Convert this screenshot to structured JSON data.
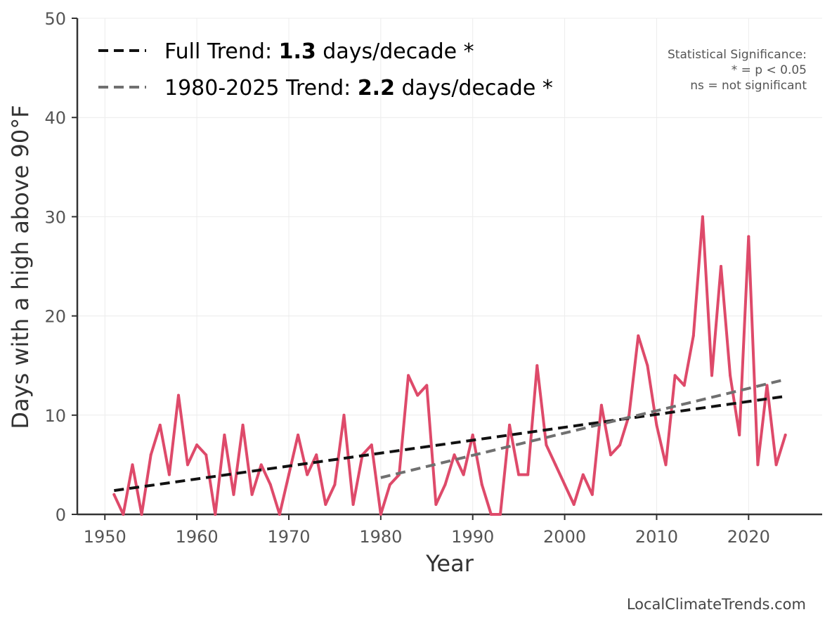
{
  "chart_data": {
    "type": "line",
    "xlabel": "Year",
    "ylabel": "Days with a high above 90°F",
    "xlim": [
      1947,
      2028
    ],
    "ylim": [
      0,
      50
    ],
    "x_ticks": [
      1950,
      1960,
      1970,
      1980,
      1990,
      2000,
      2010,
      2020
    ],
    "y_ticks": [
      0,
      10,
      20,
      30,
      40,
      50
    ],
    "grid": true,
    "series": [
      {
        "name": "Days with a high above 90°F",
        "color": "#de4a6a",
        "x": [
          1951,
          1952,
          1953,
          1954,
          1955,
          1956,
          1957,
          1958,
          1959,
          1960,
          1961,
          1962,
          1963,
          1964,
          1965,
          1966,
          1967,
          1968,
          1969,
          1970,
          1971,
          1972,
          1973,
          1974,
          1975,
          1976,
          1977,
          1978,
          1979,
          1980,
          1981,
          1982,
          1983,
          1984,
          1985,
          1986,
          1987,
          1988,
          1989,
          1990,
          1991,
          1992,
          1993,
          1994,
          1995,
          1996,
          1997,
          1998,
          1999,
          2000,
          2001,
          2002,
          2003,
          2004,
          2005,
          2006,
          2007,
          2008,
          2009,
          2010,
          2011,
          2012,
          2013,
          2014,
          2015,
          2016,
          2017,
          2018,
          2019,
          2020,
          2021,
          2022,
          2023,
          2024
        ],
        "values": [
          2,
          0,
          5,
          0,
          6,
          9,
          4,
          12,
          5,
          7,
          6,
          0,
          8,
          2,
          9,
          2,
          5,
          3,
          0,
          4,
          8,
          4,
          6,
          1,
          3,
          10,
          1,
          6,
          7,
          0,
          3,
          4,
          14,
          12,
          13,
          1,
          3,
          6,
          4,
          8,
          3,
          0,
          0,
          9,
          4,
          4,
          15,
          7,
          5,
          3,
          1,
          4,
          2,
          11,
          6,
          7,
          10,
          18,
          15,
          9,
          5,
          14,
          13,
          18,
          30,
          14,
          25,
          14,
          8,
          28,
          5,
          13,
          5,
          8
        ]
      }
    ],
    "trends": [
      {
        "name": "Full Trend",
        "label_prefix": "Full Trend: ",
        "value_label": "1.3",
        "label_suffix": " days/decade *",
        "rate_per_decade": 1.3,
        "color": "#111111",
        "x": [
          1951,
          2024
        ],
        "y": [
          2.4,
          11.9
        ]
      },
      {
        "name": "1980-2025 Trend",
        "label_prefix": "1980-2025 Trend: ",
        "value_label": "2.2",
        "label_suffix": " days/decade *",
        "rate_per_decade": 2.2,
        "color": "#707070",
        "x": [
          1980,
          2024
        ],
        "y": [
          3.7,
          13.6
        ]
      }
    ],
    "legend_position": "top-left",
    "significance_note": {
      "title": "Statistical Significance:",
      "lines": [
        "* = p < 0.05",
        "ns = not significant"
      ]
    },
    "credit": "LocalClimateTrends.com"
  }
}
